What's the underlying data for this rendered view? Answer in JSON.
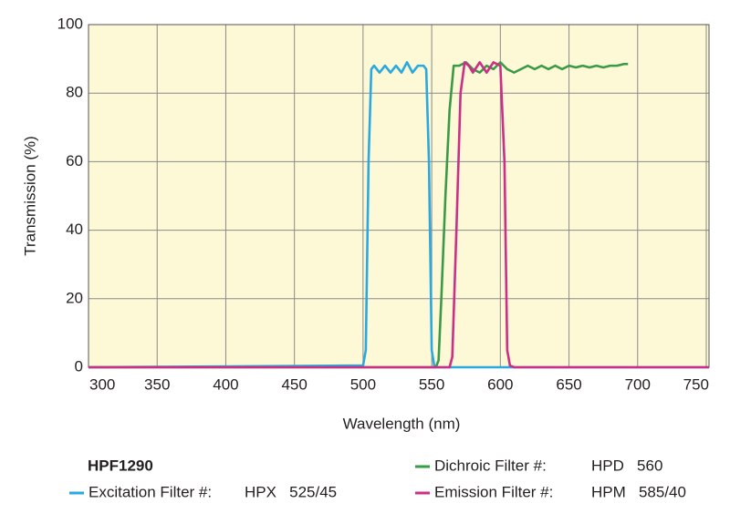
{
  "chart_data": {
    "type": "line",
    "x_label": "Wavelength (nm)",
    "y_label": "Transmission (%)",
    "xlim": [
      300,
      752
    ],
    "ylim": [
      0,
      100
    ],
    "xticks": [
      300,
      350,
      400,
      450,
      500,
      550,
      600,
      650,
      700,
      750
    ],
    "yticks": [
      0,
      20,
      40,
      60,
      80,
      100
    ],
    "grid": true,
    "background": "#fdf8d6",
    "legend_title": "HPF1290",
    "series": [
      {
        "name": "Excitation Filter #:",
        "model": "HPX   525/45",
        "color": "#29a9e0",
        "x": [
          300,
          500,
          502,
          504,
          506,
          508,
          512,
          516,
          520,
          524,
          528,
          532,
          536,
          540,
          544,
          546,
          548,
          550,
          552,
          752
        ],
        "values": [
          0,
          0.5,
          5,
          60,
          87,
          88,
          86,
          88,
          86,
          88,
          86,
          89,
          86,
          88,
          88,
          87,
          60,
          5,
          0,
          0
        ]
      },
      {
        "name": "Dichroic Filter #:",
        "model": "HPD   560",
        "color": "#3a9a47",
        "x": [
          300,
          553,
          555,
          557,
          560,
          563,
          566,
          570,
          575,
          580,
          585,
          590,
          595,
          600,
          605,
          610,
          615,
          620,
          625,
          630,
          635,
          640,
          645,
          650,
          655,
          660,
          665,
          670,
          675,
          680,
          685,
          690,
          693
        ],
        "values": [
          0,
          0,
          2,
          20,
          50,
          75,
          88,
          88,
          89,
          87,
          86,
          88,
          87,
          89,
          87,
          86,
          87,
          88,
          87,
          88,
          87,
          88,
          87,
          88,
          87.5,
          88,
          87.5,
          88,
          87.5,
          88,
          88,
          88.5,
          88.5
        ]
      },
      {
        "name": "Emission Filter #:",
        "model": "HPM   585/40",
        "color": "#cc2f87",
        "x": [
          300,
          563,
          565,
          568,
          571,
          574,
          577,
          580,
          585,
          590,
          595,
          600,
          603,
          605,
          607,
          610,
          752
        ],
        "values": [
          0,
          0,
          3,
          40,
          80,
          89,
          88,
          86,
          89,
          86,
          89,
          88,
          60,
          5,
          0.5,
          0,
          0
        ]
      }
    ]
  }
}
